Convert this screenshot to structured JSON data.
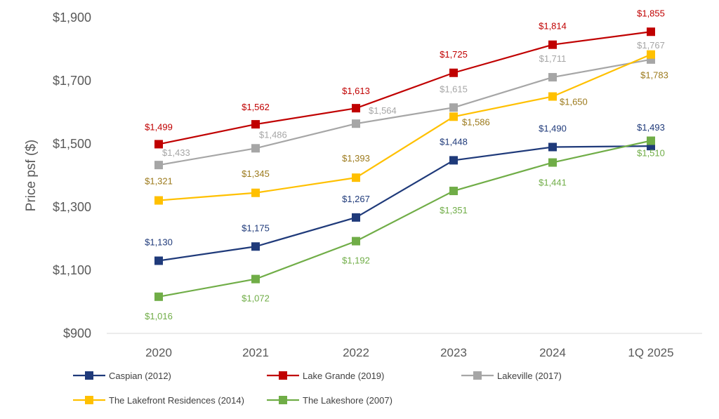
{
  "chart_data": {
    "type": "line",
    "title": "",
    "xlabel": "",
    "ylabel": "Price psf ($)",
    "ylim": [
      900,
      1900
    ],
    "yticks": [
      900,
      1100,
      1300,
      1500,
      1700,
      1900
    ],
    "ytick_labels": [
      "$900",
      "$1,100",
      "$1,300",
      "$1,500",
      "$1,700",
      "$1,900"
    ],
    "categories": [
      "2020",
      "2021",
      "2022",
      "2023",
      "2024",
      "1Q 2025"
    ],
    "grid": false,
    "legend_position": "bottom",
    "series": [
      {
        "name": "Caspian (2012)",
        "color": "#1f3a7a",
        "values": [
          1130,
          1175,
          1267,
          1448,
          1490,
          1493
        ],
        "labels": [
          "$1,130",
          "$1,175",
          "$1,267",
          "$1,448",
          "$1,490",
          "$1,493"
        ]
      },
      {
        "name": "Lake Grande (2019)",
        "color": "#c00000",
        "values": [
          1499,
          1562,
          1613,
          1725,
          1814,
          1855
        ],
        "labels": [
          "$1,499",
          "$1,562",
          "$1,613",
          "$1,725",
          "$1,814",
          "$1,855"
        ]
      },
      {
        "name": "Lakeville (2017)",
        "color": "#a6a6a6",
        "values": [
          1433,
          1486,
          1564,
          1615,
          1711,
          1767
        ],
        "labels": [
          "$1,433",
          "$1,486",
          "$1,564",
          "$1,615",
          "$1,711",
          "$1,767"
        ]
      },
      {
        "name": "The Lakefront Residences (2014)",
        "color": "#ffc000",
        "label_color": "#9c7a1c",
        "values": [
          1321,
          1345,
          1393,
          1586,
          1650,
          1783
        ],
        "labels": [
          "$1,321",
          "$1,345",
          "$1,393",
          "$1,586",
          "$1,650",
          "$1,783"
        ]
      },
      {
        "name": "The Lakeshore (2007)",
        "color": "#70ad47",
        "values": [
          1016,
          1072,
          1192,
          1351,
          1441,
          1510
        ],
        "labels": [
          "$1,016",
          "$1,072",
          "$1,192",
          "$1,351",
          "$1,441",
          "$1,510"
        ]
      }
    ]
  }
}
